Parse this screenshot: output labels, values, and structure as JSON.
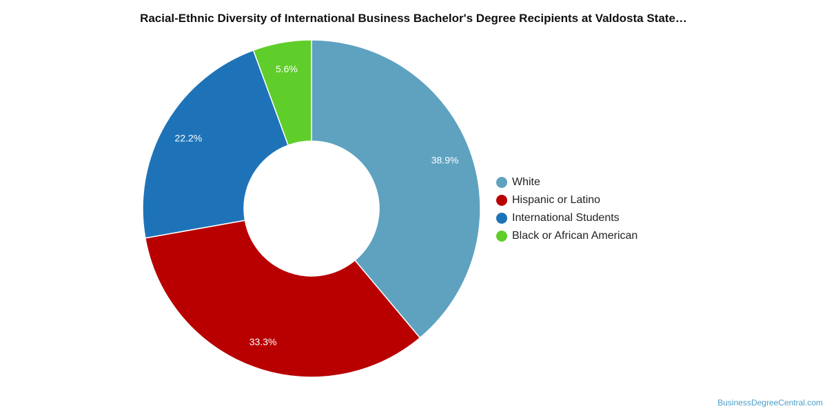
{
  "chart_data": {
    "type": "pie",
    "variant": "donut",
    "title": "Racial-Ethnic Diversity of International Business Bachelor's Degree Recipients at Valdosta State…",
    "categories": [
      "White",
      "Hispanic or Latino",
      "International Students",
      "Black or African American"
    ],
    "values": [
      38.9,
      33.3,
      22.2,
      5.6
    ],
    "labels": [
      "38.9%",
      "33.3%",
      "22.2%",
      "5.6%"
    ],
    "colors": [
      "#5ea2c0",
      "#b80000",
      "#1e73b8",
      "#5fcd2a"
    ],
    "legend_position": "right"
  },
  "credit": "BusinessDegreeCentral.com"
}
